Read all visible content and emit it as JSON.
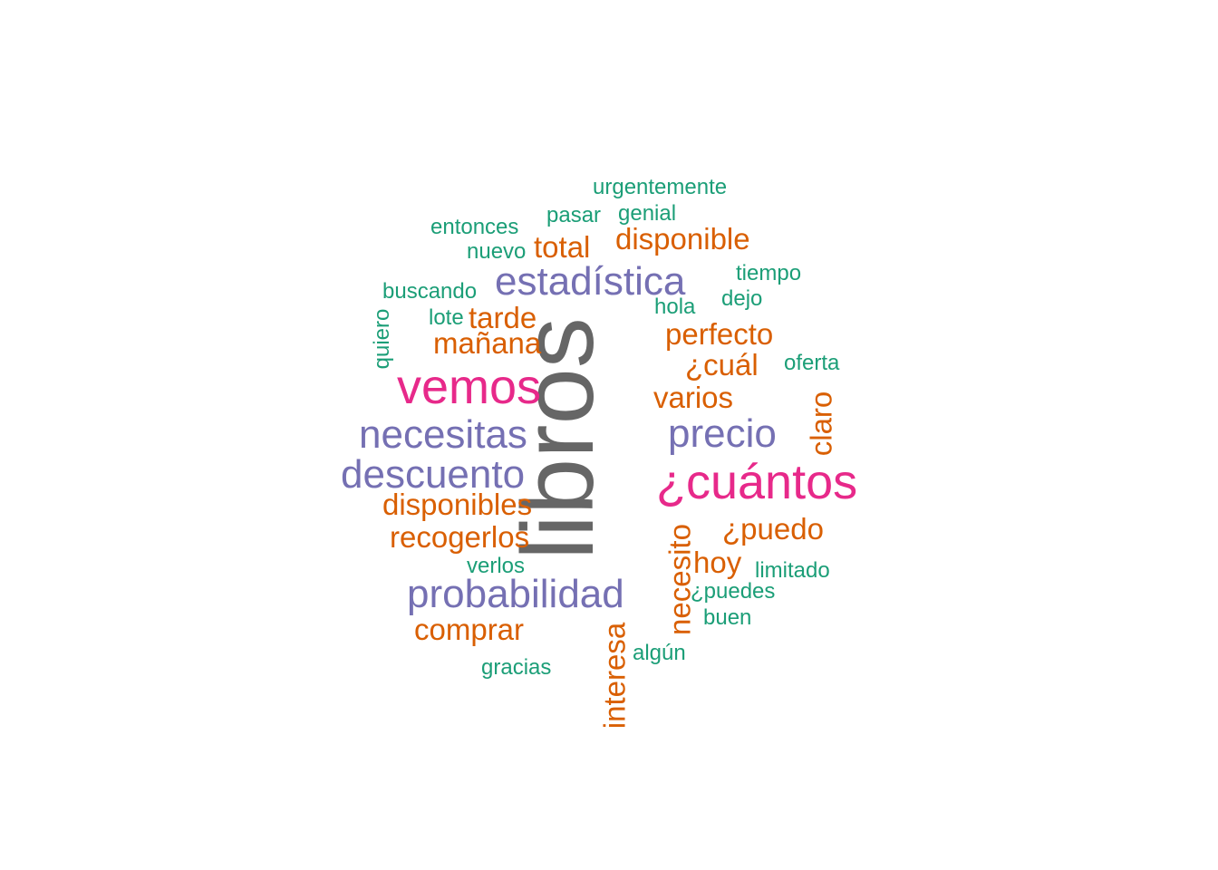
{
  "colors": {
    "gray": "#666666",
    "pink": "#e7298a",
    "purple": "#7570b3",
    "orange": "#d95f02",
    "green": "#1b9e77"
  },
  "words": [
    {
      "text": "libros",
      "color": "gray",
      "rotated": true
    },
    {
      "text": "¿cuántos",
      "color": "pink"
    },
    {
      "text": "vemos",
      "color": "pink"
    },
    {
      "text": "estadística",
      "color": "purple"
    },
    {
      "text": "necesitas",
      "color": "purple"
    },
    {
      "text": "descuento",
      "color": "purple"
    },
    {
      "text": "precio",
      "color": "purple"
    },
    {
      "text": "probabilidad",
      "color": "purple"
    },
    {
      "text": "disponible",
      "color": "orange"
    },
    {
      "text": "total",
      "color": "orange"
    },
    {
      "text": "tarde",
      "color": "orange"
    },
    {
      "text": "mañana",
      "color": "orange"
    },
    {
      "text": "perfecto",
      "color": "orange"
    },
    {
      "text": "¿cuál",
      "color": "orange"
    },
    {
      "text": "varios",
      "color": "orange"
    },
    {
      "text": "claro",
      "color": "orange",
      "rotated": true
    },
    {
      "text": "disponibles",
      "color": "orange"
    },
    {
      "text": "recogerlos",
      "color": "orange"
    },
    {
      "text": "¿puedo",
      "color": "orange"
    },
    {
      "text": "hoy",
      "color": "orange"
    },
    {
      "text": "necesito",
      "color": "orange",
      "rotated": true
    },
    {
      "text": "comprar",
      "color": "orange"
    },
    {
      "text": "interesa",
      "color": "orange",
      "rotated": true
    },
    {
      "text": "urgentemente",
      "color": "green"
    },
    {
      "text": "pasar",
      "color": "green"
    },
    {
      "text": "genial",
      "color": "green"
    },
    {
      "text": "entonces",
      "color": "green"
    },
    {
      "text": "nuevo",
      "color": "green"
    },
    {
      "text": "tiempo",
      "color": "green"
    },
    {
      "text": "buscando",
      "color": "green"
    },
    {
      "text": "dejo",
      "color": "green"
    },
    {
      "text": "hola",
      "color": "green"
    },
    {
      "text": "lote",
      "color": "green"
    },
    {
      "text": "quiero",
      "color": "green",
      "rotated": true
    },
    {
      "text": "oferta",
      "color": "green"
    },
    {
      "text": "verlos",
      "color": "green"
    },
    {
      "text": "limitado",
      "color": "green"
    },
    {
      "text": "¿puedes",
      "color": "green"
    },
    {
      "text": "buen",
      "color": "green"
    },
    {
      "text": "algún",
      "color": "green"
    },
    {
      "text": "gracias",
      "color": "green"
    }
  ]
}
